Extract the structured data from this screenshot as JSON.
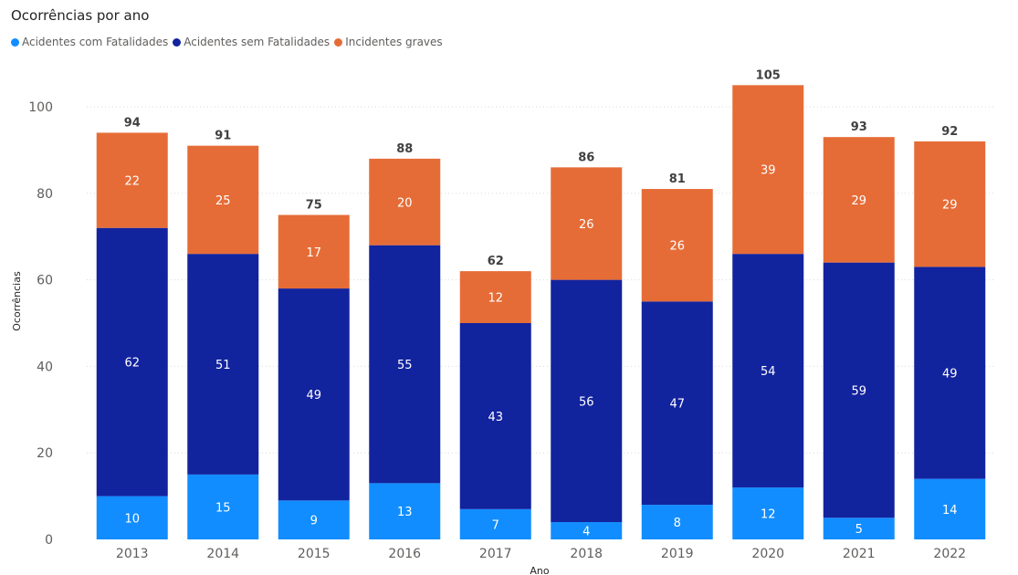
{
  "chart_data": {
    "type": "bar",
    "stacked": true,
    "title": "Ocorrências por ano",
    "xlabel": "Ano",
    "ylabel": "Ocorrências",
    "ylim": [
      0,
      110
    ],
    "yticks": [
      0,
      20,
      40,
      60,
      80,
      100
    ],
    "grid": true,
    "legend_position": "top-left",
    "categories": [
      "2013",
      "2014",
      "2015",
      "2016",
      "2017",
      "2018",
      "2019",
      "2020",
      "2021",
      "2022"
    ],
    "series": [
      {
        "name": "Acidentes com Fatalidades",
        "color": "#118dff",
        "values": [
          10,
          15,
          9,
          13,
          7,
          4,
          8,
          12,
          5,
          14
        ]
      },
      {
        "name": "Acidentes sem Fatalidades",
        "color": "#12239e",
        "values": [
          62,
          51,
          49,
          55,
          43,
          56,
          47,
          54,
          59,
          49
        ]
      },
      {
        "name": "Incidentes graves",
        "color": "#e66c37",
        "values": [
          22,
          25,
          17,
          20,
          12,
          26,
          26,
          39,
          29,
          29
        ]
      }
    ],
    "totals": [
      94,
      91,
      75,
      88,
      62,
      86,
      81,
      105,
      93,
      92
    ]
  }
}
